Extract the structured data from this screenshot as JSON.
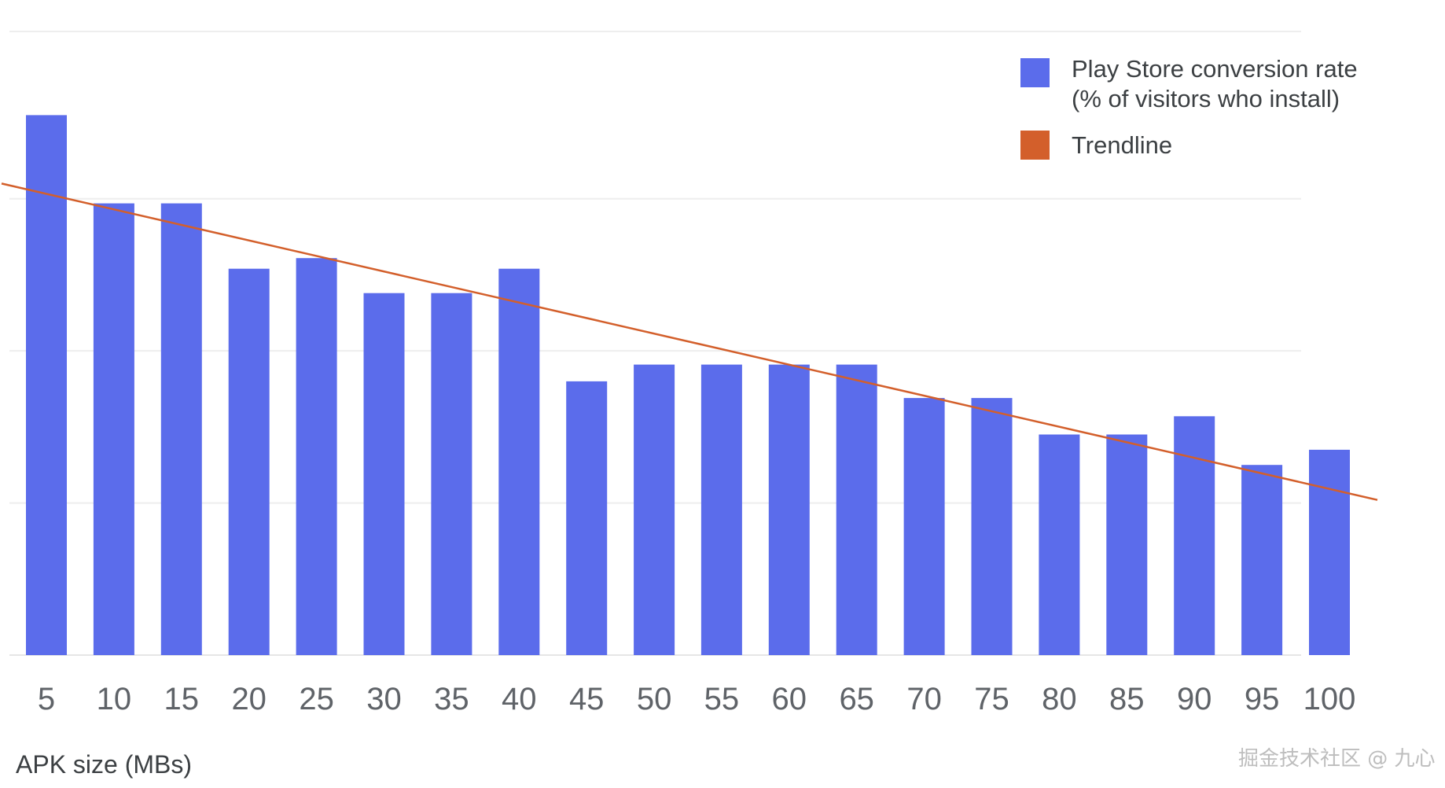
{
  "chart_data": {
    "type": "bar",
    "title": "",
    "xlabel": "APK size (MBs)",
    "ylabel": "",
    "categories": [
      "5",
      "10",
      "15",
      "20",
      "25",
      "30",
      "35",
      "40",
      "45",
      "50",
      "55",
      "60",
      "65",
      "70",
      "75",
      "80",
      "85",
      "90",
      "95",
      "100"
    ],
    "series": [
      {
        "name": "Play Store conversion rate (% of visitors who install)",
        "name_lines": [
          "Play Store conversion rate",
          "(% of visitors who install)"
        ],
        "type": "bar",
        "color": "#5b6ceb",
        "values": [
          3.55,
          2.97,
          2.97,
          2.54,
          2.61,
          2.38,
          2.38,
          2.54,
          1.8,
          1.91,
          1.91,
          1.91,
          1.91,
          1.69,
          1.69,
          1.45,
          1.45,
          1.57,
          1.25,
          1.35
        ]
      },
      {
        "name": "Trendline",
        "type": "line",
        "color": "#d35f2b",
        "start": 3.1,
        "end": 1.02
      }
    ],
    "ylim": [
      0,
      4.1
    ],
    "gridlines": [
      1.0,
      2.0,
      3.0,
      4.1
    ],
    "grid": true,
    "legend": "top-right",
    "y_tick_labels_visible": false
  },
  "watermark": {
    "text": "掘金技术社区 @ 九心"
  }
}
